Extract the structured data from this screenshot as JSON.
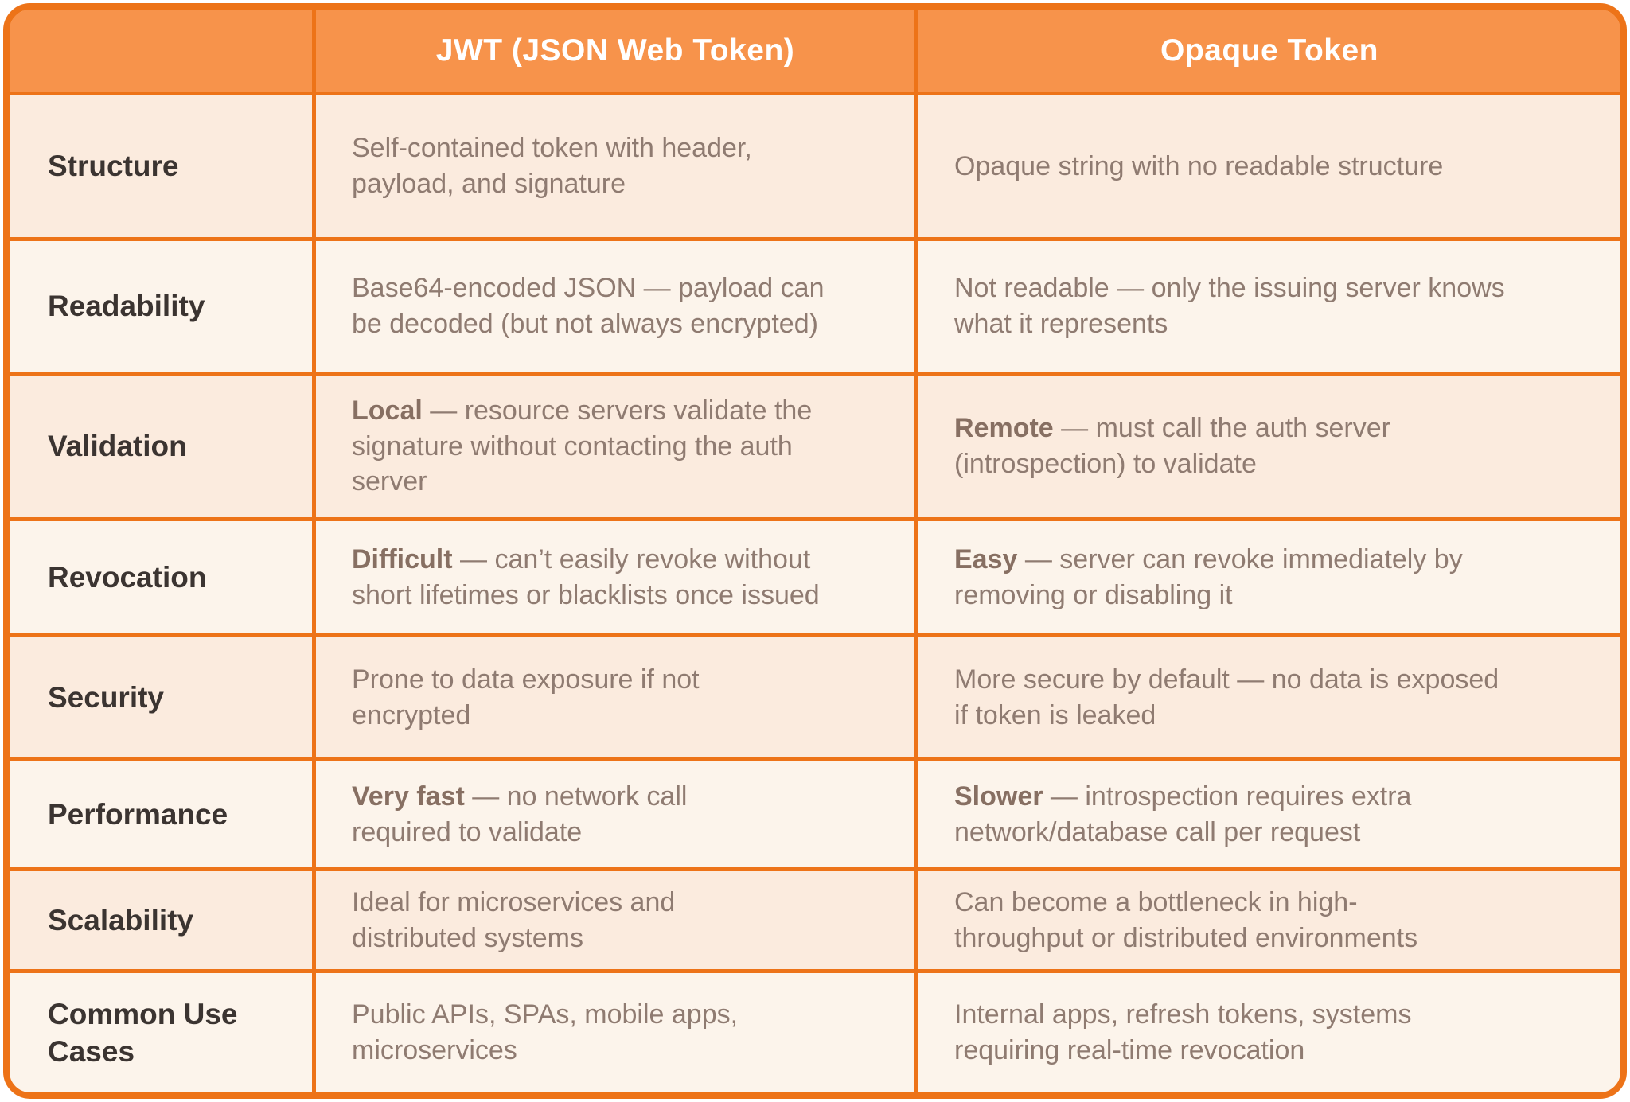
{
  "colors": {
    "accent": "#ED7318",
    "header_fill": "#F7934B",
    "header_text": "#FFFFFF",
    "row_peach": "#FBEBDE",
    "row_cream": "#FCF4EB",
    "label_text": "#3B3431",
    "body_text": "#8F7B71",
    "bold_text": "#876F62",
    "page_bg": "#FFFFFF"
  },
  "chart_data": {
    "type": "table",
    "columns": [
      "",
      "JWT (JSON Web Token)",
      "Opaque Token"
    ],
    "rows": [
      {
        "label": "Structure",
        "jwt": {
          "bold": "",
          "text": "Self-contained token with header,\npayload, and signature"
        },
        "opaque": {
          "bold": "",
          "text": "Opaque string with no readable structure"
        }
      },
      {
        "label": "Readability",
        "jwt": {
          "bold": "",
          "text": "Base64-encoded JSON — payload can\nbe decoded (but not always encrypted)"
        },
        "opaque": {
          "bold": "",
          "text": "Not readable — only the issuing server knows\nwhat it represents"
        }
      },
      {
        "label": "Validation",
        "jwt": {
          "bold": "Local",
          "text": " — resource servers validate the\nsignature without contacting the auth\nserver"
        },
        "opaque": {
          "bold": "Remote",
          "text": " — must call the auth server\n(introspection) to validate"
        }
      },
      {
        "label": "Revocation",
        "jwt": {
          "bold": "Difficult",
          "text": " — can’t easily revoke without\nshort lifetimes or blacklists once issued"
        },
        "opaque": {
          "bold": "Easy",
          "text": " — server can revoke immediately by\nremoving or disabling it"
        }
      },
      {
        "label": "Security",
        "jwt": {
          "bold": "",
          "text": "Prone to data exposure if not\nencrypted"
        },
        "opaque": {
          "bold": "",
          "text": "More secure by default — no data is exposed\nif token is leaked"
        }
      },
      {
        "label": "Performance",
        "jwt": {
          "bold": "Very fast",
          "text": " — no network call\nrequired to validate"
        },
        "opaque": {
          "bold": "Slower",
          "text": " — introspection requires extra\nnetwork/database call per request"
        }
      },
      {
        "label": "Scalability",
        "jwt": {
          "bold": "",
          "text": "Ideal for microservices and\ndistributed systems"
        },
        "opaque": {
          "bold": "",
          "text": "Can become a bottleneck in high-\nthroughput or distributed environments"
        }
      },
      {
        "label": "Common Use\nCases",
        "jwt": {
          "bold": "",
          "text": "Public APIs, SPAs, mobile apps,\nmicroservices"
        },
        "opaque": {
          "bold": "",
          "text": "Internal apps, refresh tokens, systems\nrequiring real-time revocation"
        }
      }
    ]
  }
}
